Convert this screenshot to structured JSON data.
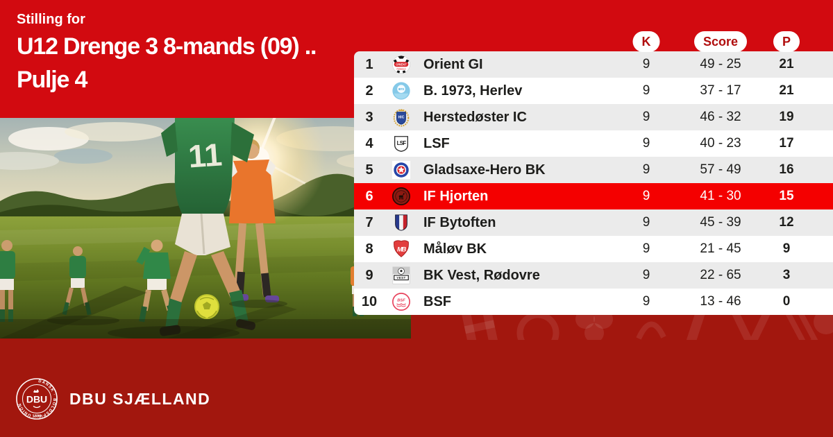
{
  "card": {
    "eyebrow": "Stilling for",
    "title_line1": "U12 Drenge 3 8-mands (09) ..",
    "title_line2": "Pulje 4"
  },
  "table": {
    "col_k": "K",
    "col_score": "Score",
    "col_p": "P",
    "rows": [
      {
        "pos": "1",
        "club": "Orient GI",
        "logo": "orient-gi",
        "k": "9",
        "score": "49 - 25",
        "p": "21",
        "highlight": false
      },
      {
        "pos": "2",
        "club": "B. 1973, Herlev",
        "logo": "b1973",
        "k": "9",
        "score": "37 - 17",
        "p": "21",
        "highlight": false
      },
      {
        "pos": "3",
        "club": "Herstedøster IC",
        "logo": "herstedoster",
        "k": "9",
        "score": "46 - 32",
        "p": "19",
        "highlight": false
      },
      {
        "pos": "4",
        "club": "LSF",
        "logo": "lsf",
        "k": "9",
        "score": "40 - 23",
        "p": "17",
        "highlight": false
      },
      {
        "pos": "5",
        "club": "Gladsaxe-Hero BK",
        "logo": "gladsaxe",
        "k": "9",
        "score": "57 - 49",
        "p": "16",
        "highlight": false
      },
      {
        "pos": "6",
        "club": "IF Hjorten",
        "logo": "hjorten",
        "k": "9",
        "score": "41 - 30",
        "p": "15",
        "highlight": true
      },
      {
        "pos": "7",
        "club": "IF Bytoften",
        "logo": "bytoften",
        "k": "9",
        "score": "45 - 39",
        "p": "12",
        "highlight": false
      },
      {
        "pos": "8",
        "club": "Måløv BK",
        "logo": "malov",
        "k": "9",
        "score": "21 - 45",
        "p": "9",
        "highlight": false
      },
      {
        "pos": "9",
        "club": "BK Vest, Rødovre",
        "logo": "bkvest",
        "k": "9",
        "score": "22 - 65",
        "p": "3",
        "highlight": false
      },
      {
        "pos": "10",
        "club": "BSF",
        "logo": "bsf",
        "k": "9",
        "score": "13 - 46",
        "p": "0",
        "highlight": false
      }
    ]
  },
  "logos": {
    "orient-gi": {
      "label": "ORIENT",
      "sub": "FODBOLD"
    },
    "b1973": {
      "label": "B73"
    },
    "herstedoster": {
      "label": "HIC"
    },
    "lsf": {
      "label": "LSF"
    },
    "gladsaxe": {
      "label": ""
    },
    "hjorten": {
      "label": ""
    },
    "bytoften": {
      "label": ""
    },
    "malov": {
      "label": "MB"
    },
    "bkvest": {
      "label": "VEST"
    },
    "bsf": {
      "label": "BSF"
    }
  },
  "photo": {
    "jersey_number": "11"
  },
  "footer": {
    "brand": "DBU SJÆLLAND",
    "seal_ring_text": "DANSK · BOLDSPIL · UNION",
    "seal_center": "DBU",
    "seal_year": "1889"
  },
  "colors": {
    "brand_red": "#d20a10",
    "dark_red": "#a2170e",
    "highlight_red": "#f40000",
    "row_gray": "#ebebeb",
    "pill_text_red": "#b00d0d",
    "text_dark": "#1d1d1b"
  }
}
